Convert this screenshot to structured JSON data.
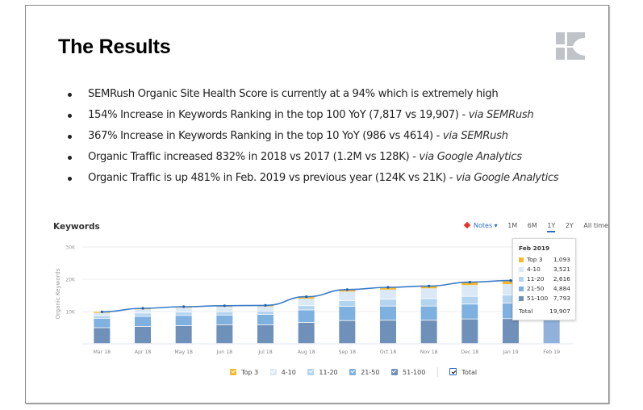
{
  "slide": {
    "title": "The Results",
    "logo_text": "K",
    "bullets": [
      {
        "text": "SEMRush Organic Site Health Score is currently at a 94% which is extremely high",
        "via": ""
      },
      {
        "text": "154% Increase in Keywords Ranking in the top 100 YoY (7,817 vs 19,907) - ",
        "via": "via SEMRush"
      },
      {
        "text": "367% Increase in Keywords Ranking in the top 10 YoY (986 vs 4614) - ",
        "via": "via SEMRush"
      },
      {
        "text": "Organic Traffic increased 832% in 2018 vs 2017 (1.2M vs 128K) - ",
        "via": "via Google Analytics"
      },
      {
        "text": "Organic Traffic is up 481% in Feb. 2019 vs previous year (124K vs 21K) - ",
        "via": "via Google Analytics"
      }
    ]
  },
  "toolbar": {
    "notes_label": "Notes ▾",
    "ranges": [
      "1M",
      "6M",
      "1Y",
      "2Y",
      "All time"
    ],
    "active_range": "1Y"
  },
  "tooltip": {
    "title": "Feb 2019",
    "rows": [
      {
        "label": "Top 3",
        "value": "1,093",
        "color": "#f5b82e"
      },
      {
        "label": "4-10",
        "value": "3,521",
        "color": "#dbe9f7"
      },
      {
        "label": "11-20",
        "value": "2,616",
        "color": "#b3d4ef"
      },
      {
        "label": "21-50",
        "value": "4,884",
        "color": "#7eb0e0"
      },
      {
        "label": "51-100",
        "value": "7,793",
        "color": "#6f90b8"
      }
    ],
    "total_label": "Total",
    "total_value": "19,907"
  },
  "chart_data": {
    "type": "bar",
    "title": "Keywords",
    "xlabel": "",
    "ylabel": "Organic Keywords",
    "ylim": [
      0,
      30000
    ],
    "yticks": [
      10000,
      20000,
      30000
    ],
    "ytick_labels": [
      "10K",
      "20K",
      "30K"
    ],
    "grid": true,
    "stacked": true,
    "legend_position": "bottom",
    "categories": [
      "Mar 18",
      "Apr 18",
      "May 18",
      "Jun 18",
      "Jul 18",
      "Aug 18",
      "Sep 18",
      "Oct 18",
      "Nov 18",
      "Dec 18",
      "Jan 19",
      "Feb 19"
    ],
    "series": [
      {
        "name": "51-100",
        "color": "#6f90b8",
        "values": [
          4900,
          5300,
          5500,
          5800,
          5800,
          6500,
          7100,
          7200,
          7200,
          7600,
          7700,
          7793
        ]
      },
      {
        "name": "21-50",
        "color": "#7eb0e0",
        "values": [
          2900,
          3100,
          3200,
          3000,
          3200,
          3900,
          4400,
          4400,
          4400,
          4600,
          4800,
          4884
        ]
      },
      {
        "name": "11-20",
        "color": "#b3d4ef",
        "values": [
          800,
          1000,
          1000,
          1000,
          1000,
          1300,
          1800,
          2100,
          2300,
          2400,
          2500,
          2616
        ]
      },
      {
        "name": "4-10",
        "color": "#dbe9f7",
        "values": [
          1000,
          1300,
          1500,
          1700,
          1600,
          2300,
          2900,
          3100,
          3300,
          3600,
          3500,
          3521
        ]
      },
      {
        "name": "Top 3",
        "color": "#f5b82e",
        "values": [
          300,
          300,
          300,
          300,
          300,
          600,
          600,
          700,
          700,
          900,
          1000,
          1093
        ]
      }
    ],
    "total": {
      "name": "Total",
      "color": "#3a7cc8",
      "values": [
        9900,
        11000,
        11500,
        11800,
        11900,
        14600,
        16800,
        17500,
        17900,
        19100,
        19600,
        19907
      ]
    },
    "highlighted_category": "Feb 19",
    "legend": [
      "Top 3",
      "4-10",
      "11-20",
      "21-50",
      "51-100",
      "Total"
    ]
  }
}
